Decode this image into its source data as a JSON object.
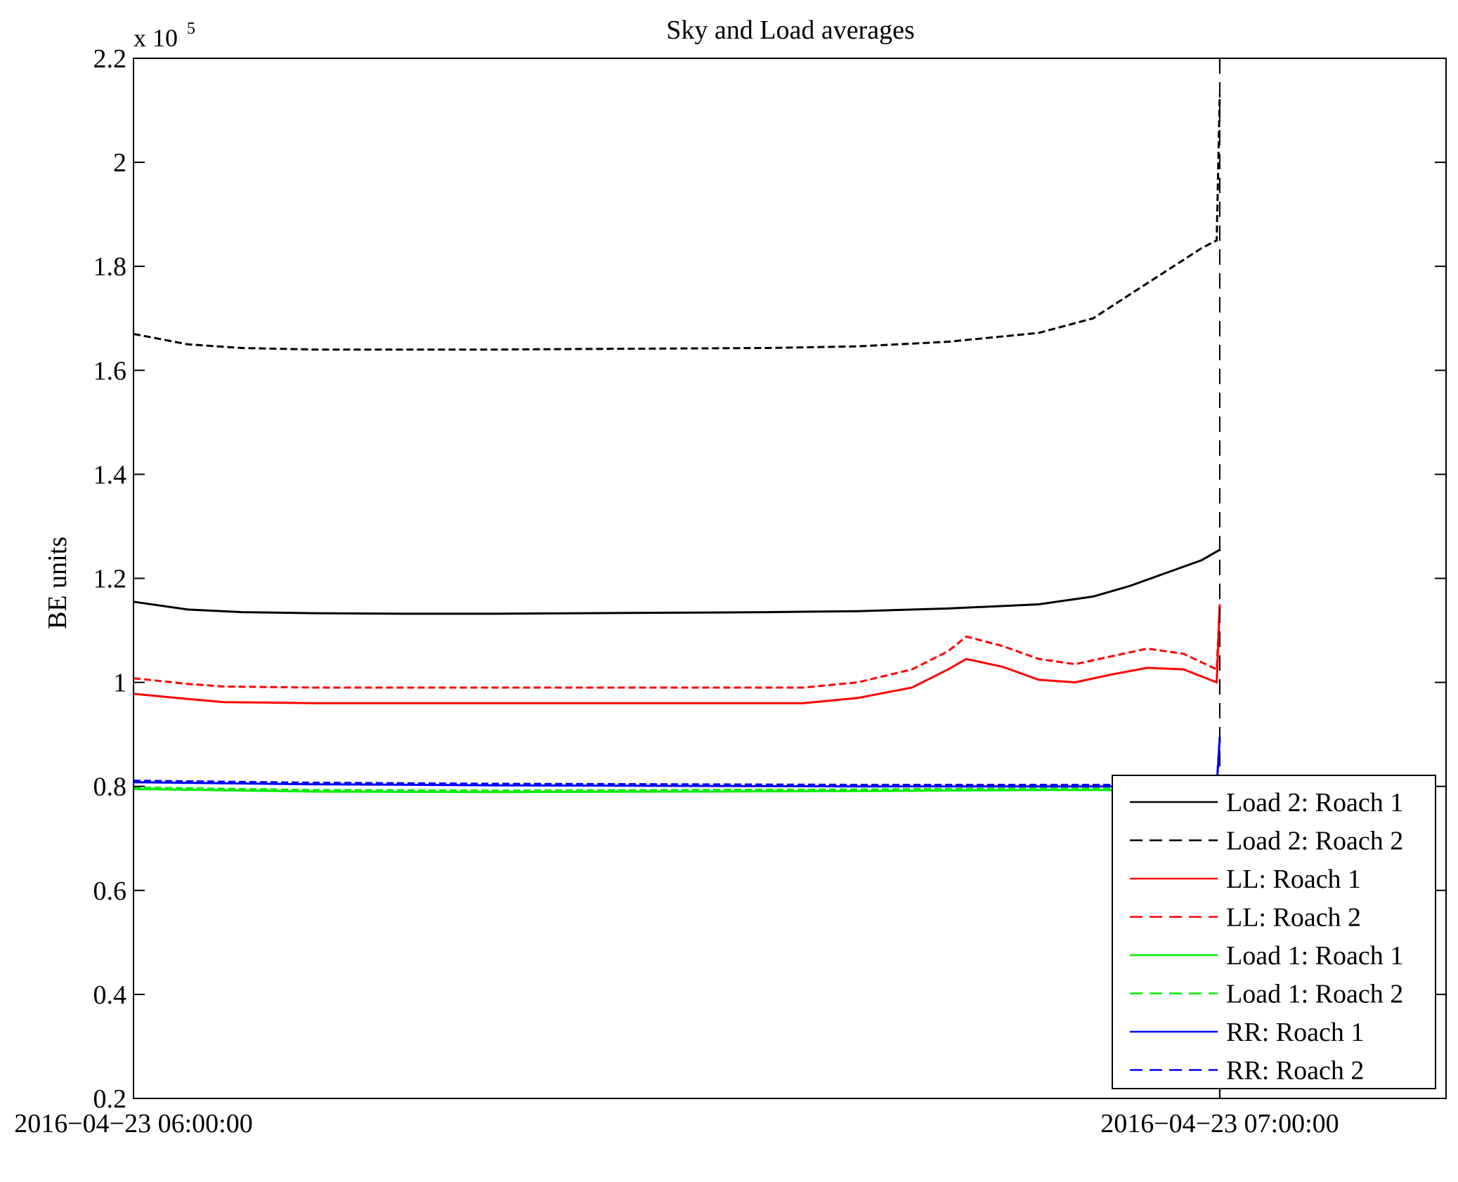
{
  "chart_data": {
    "type": "line",
    "title": "Sky and Load averages",
    "xlabel": "",
    "ylabel": "BE units",
    "y_exponent_label": "x 10",
    "y_exponent_power": "5",
    "ylim": [
      20000,
      220000
    ],
    "y_ticks": [
      20000,
      40000,
      60000,
      80000,
      100000,
      120000,
      140000,
      160000,
      180000,
      200000,
      220000
    ],
    "y_tick_labels": [
      "0.2",
      "0.4",
      "0.6",
      "0.8",
      "1",
      "1.2",
      "1.4",
      "1.6",
      "1.8",
      "2",
      "2.2"
    ],
    "x_ticks": [
      "2016-04-23 06:00:00",
      "2016-04-23 07:00:00"
    ],
    "x_tick_labels": [
      "2016−04−23 06:00:00",
      "2016−04−23 07:00:00"
    ],
    "xlim": [
      "2016-04-23 06:00:00",
      "2016-04-23 07:12:30"
    ],
    "grid": false,
    "legend_position": "bottom-right",
    "vertical_marker": {
      "x": "2016-04-23 07:00:00",
      "style": "dashed",
      "color": "#000000"
    },
    "series": [
      {
        "name": "Load 2: Roach 1",
        "color": "#000000",
        "dash": "solid",
        "x": [
          "2016-04-23 06:00:00",
          "2016-04-23 06:03:00",
          "2016-04-23 06:06:00",
          "2016-04-23 06:10:00",
          "2016-04-23 06:15:00",
          "2016-04-23 06:20:00",
          "2016-04-23 06:25:00",
          "2016-04-23 06:30:00",
          "2016-04-23 06:35:00",
          "2016-04-23 06:40:00",
          "2016-04-23 06:45:00",
          "2016-04-23 06:50:00",
          "2016-04-23 06:53:00",
          "2016-04-23 06:55:00",
          "2016-04-23 06:57:00",
          "2016-04-23 06:59:00",
          "2016-04-23 07:00:00"
        ],
        "values": [
          115500,
          114000,
          113500,
          113300,
          113200,
          113200,
          113300,
          113400,
          113500,
          113700,
          114200,
          115000,
          116500,
          118500,
          121000,
          123500,
          125500
        ]
      },
      {
        "name": "Load 2: Roach 2",
        "color": "#000000",
        "dash": "dashed",
        "x": [
          "2016-04-23 06:00:00",
          "2016-04-23 06:03:00",
          "2016-04-23 06:06:00",
          "2016-04-23 06:10:00",
          "2016-04-23 06:15:00",
          "2016-04-23 06:20:00",
          "2016-04-23 06:25:00",
          "2016-04-23 06:30:00",
          "2016-04-23 06:35:00",
          "2016-04-23 06:40:00",
          "2016-04-23 06:45:00",
          "2016-04-23 06:50:00",
          "2016-04-23 06:53:00",
          "2016-04-23 06:55:00",
          "2016-04-23 06:57:00",
          "2016-04-23 06:59:00",
          "2016-04-23 06:59:50",
          "2016-04-23 07:00:00"
        ],
        "values": [
          167000,
          165000,
          164300,
          164000,
          164000,
          164000,
          164100,
          164200,
          164300,
          164600,
          165500,
          167200,
          170000,
          174500,
          179000,
          183500,
          185000,
          213000
        ]
      },
      {
        "name": "LL: Roach 1",
        "color": "#ff0000",
        "dash": "solid",
        "x": [
          "2016-04-23 06:00:00",
          "2016-04-23 06:03:00",
          "2016-04-23 06:05:00",
          "2016-04-23 06:10:00",
          "2016-04-23 06:20:00",
          "2016-04-23 06:30:00",
          "2016-04-23 06:37:00",
          "2016-04-23 06:40:00",
          "2016-04-23 06:43:00",
          "2016-04-23 06:45:00",
          "2016-04-23 06:46:00",
          "2016-04-23 06:48:00",
          "2016-04-23 06:50:00",
          "2016-04-23 06:52:00",
          "2016-04-23 06:54:00",
          "2016-04-23 06:56:00",
          "2016-04-23 06:58:00",
          "2016-04-23 06:59:50",
          "2016-04-23 07:00:00"
        ],
        "values": [
          97800,
          96800,
          96200,
          96000,
          96000,
          96000,
          96000,
          97000,
          99000,
          102500,
          104500,
          103000,
          100500,
          100000,
          101500,
          102800,
          102500,
          100000,
          115000
        ]
      },
      {
        "name": "LL: Roach 2",
        "color": "#ff0000",
        "dash": "dashed",
        "x": [
          "2016-04-23 06:00:00",
          "2016-04-23 06:03:00",
          "2016-04-23 06:05:00",
          "2016-04-23 06:10:00",
          "2016-04-23 06:20:00",
          "2016-04-23 06:30:00",
          "2016-04-23 06:37:00",
          "2016-04-23 06:40:00",
          "2016-04-23 06:43:00",
          "2016-04-23 06:45:00",
          "2016-04-23 06:46:00",
          "2016-04-23 06:48:00",
          "2016-04-23 06:50:00",
          "2016-04-23 06:52:00",
          "2016-04-23 06:54:00",
          "2016-04-23 06:56:00",
          "2016-04-23 06:58:00",
          "2016-04-23 06:59:50",
          "2016-04-23 07:00:00"
        ],
        "values": [
          100800,
          99700,
          99200,
          99000,
          99000,
          99000,
          99000,
          100000,
          102500,
          106000,
          108800,
          107000,
          104500,
          103500,
          105000,
          106500,
          105500,
          102500,
          115000
        ]
      },
      {
        "name": "Load 1: Roach 1",
        "color": "#00ee00",
        "dash": "solid",
        "x": [
          "2016-04-23 06:00:00",
          "2016-04-23 06:10:00",
          "2016-04-23 06:20:00",
          "2016-04-23 06:30:00",
          "2016-04-23 06:40:00",
          "2016-04-23 06:50:00",
          "2016-04-23 06:55:00",
          "2016-04-23 06:59:50",
          "2016-04-23 07:00:00"
        ],
        "values": [
          79500,
          79000,
          78900,
          79000,
          79100,
          79300,
          79300,
          79300,
          81000
        ]
      },
      {
        "name": "Load 1: Roach 2",
        "color": "#00ee00",
        "dash": "dashed",
        "x": [
          "2016-04-23 06:00:00",
          "2016-04-23 06:10:00",
          "2016-04-23 06:20:00",
          "2016-04-23 06:30:00",
          "2016-04-23 06:40:00",
          "2016-04-23 06:50:00",
          "2016-04-23 06:55:00",
          "2016-04-23 06:59:50",
          "2016-04-23 07:00:00"
        ],
        "values": [
          79800,
          79300,
          79200,
          79300,
          79400,
          79600,
          79600,
          79600,
          81500
        ]
      },
      {
        "name": "RR: Roach 1",
        "color": "#0000ff",
        "dash": "solid",
        "x": [
          "2016-04-23 06:00:00",
          "2016-04-23 06:10:00",
          "2016-04-23 06:20:00",
          "2016-04-23 06:30:00",
          "2016-04-23 06:40:00",
          "2016-04-23 06:50:00",
          "2016-04-23 06:55:00",
          "2016-04-23 06:59:50",
          "2016-04-23 07:00:00"
        ],
        "values": [
          80800,
          80400,
          80200,
          80100,
          80000,
          80000,
          80000,
          80000,
          89000
        ]
      },
      {
        "name": "RR: Roach 2",
        "color": "#0000ff",
        "dash": "dashed",
        "x": [
          "2016-04-23 06:00:00",
          "2016-04-23 06:10:00",
          "2016-04-23 06:20:00",
          "2016-04-23 06:30:00",
          "2016-04-23 06:40:00",
          "2016-04-23 06:50:00",
          "2016-04-23 06:55:00",
          "2016-04-23 06:59:50",
          "2016-04-23 07:00:00"
        ],
        "values": [
          81100,
          80700,
          80500,
          80400,
          80300,
          80300,
          80300,
          80300,
          89500
        ]
      }
    ]
  }
}
